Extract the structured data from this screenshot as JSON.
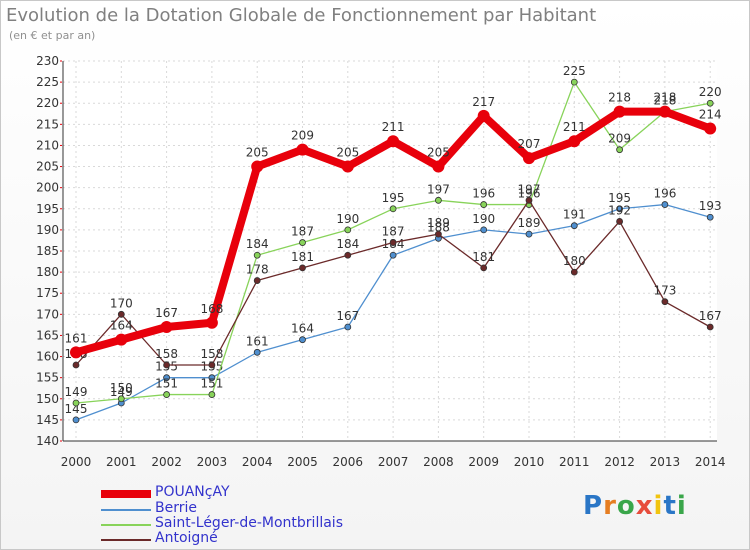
{
  "title": "Evolution de la Dotation Globale de Fonctionnement par Habitant",
  "subtitle": "(en € et par an)",
  "logo": "Proxiti",
  "chart_data": {
    "type": "line",
    "title": "Evolution de la Dotation Globale de Fonctionnement par Habitant",
    "ylabel": "(en € et par an)",
    "xlabel": "",
    "ylim": [
      140,
      230
    ],
    "yticks": [
      "140",
      "145",
      "150",
      "155",
      "160",
      "165",
      "170",
      "175",
      "180",
      "185",
      "190",
      "195",
      "200",
      "205",
      "210",
      "215",
      "220",
      "225",
      "230"
    ],
    "x": [
      "2000",
      "2001",
      "2002",
      "2003",
      "2004",
      "2005",
      "2006",
      "2007",
      "2008",
      "2009",
      "2010",
      "2011",
      "2012",
      "2013",
      "2014"
    ],
    "series": [
      {
        "name": "POUANçAY",
        "color": "#e8000b",
        "values": [
          161,
          164,
          167,
          168,
          205,
          209,
          205,
          211,
          205,
          217,
          207,
          211,
          218,
          218,
          214
        ]
      },
      {
        "name": "Berrie",
        "color": "#4f8fcf",
        "values": [
          145,
          149,
          155,
          155,
          161,
          164,
          167,
          184,
          188,
          190,
          189,
          191,
          195,
          196,
          193
        ]
      },
      {
        "name": "Saint-Léger-de-Montbrillais",
        "color": "#88d35a",
        "values": [
          149,
          150,
          151,
          151,
          184,
          187,
          190,
          195,
          197,
          196,
          196,
          225,
          209,
          218,
          220
        ]
      },
      {
        "name": "Antoigné",
        "color": "#6b2a2a",
        "values": [
          158,
          170,
          158,
          158,
          178,
          181,
          184,
          187,
          189,
          181,
          197,
          180,
          192,
          173,
          167
        ]
      }
    ],
    "legend": "bottom-left"
  }
}
